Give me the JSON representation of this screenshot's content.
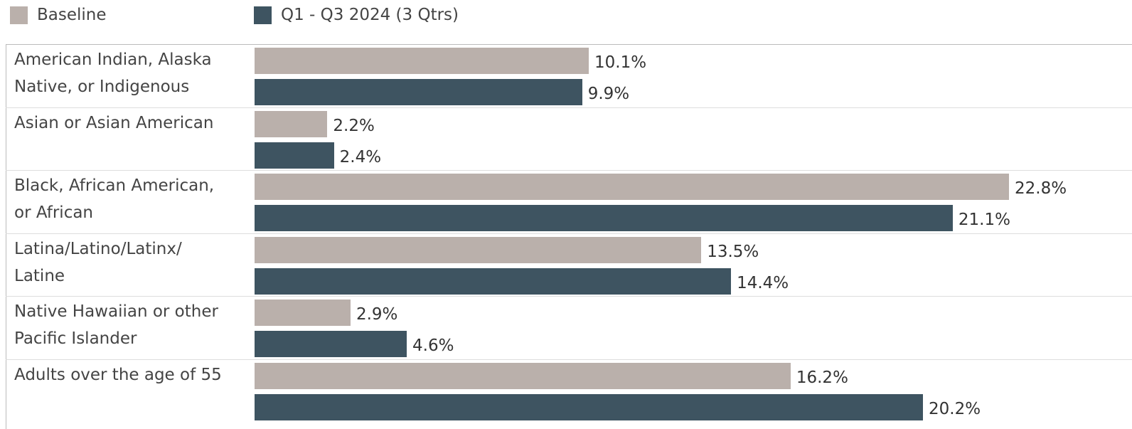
{
  "chart_data": {
    "type": "bar",
    "orientation": "horizontal",
    "categories": [
      "American Indian, Alaska\nNative, or Indigenous",
      "Asian or Asian American",
      "Black, African American,\nor African",
      "Latina/Latino/Latinx/\nLatine",
      "Native Hawaiian or other\nPacific Islander",
      "Adults over the age of 55"
    ],
    "series": [
      {
        "name": "Baseline",
        "color": "#bab0ab",
        "values": [
          10.1,
          2.2,
          22.8,
          13.5,
          2.9,
          16.2
        ],
        "value_labels": [
          "10.1%",
          "2.2%",
          "22.8%",
          "13.5%",
          "2.9%",
          "16.2%"
        ]
      },
      {
        "name": "Q1 - Q3 2024 (3 Qtrs)",
        "color": "#3e5461",
        "values": [
          9.9,
          2.4,
          21.1,
          14.4,
          4.6,
          20.2
        ],
        "value_labels": [
          "9.9%",
          "2.4%",
          "21.1%",
          "14.4%",
          "4.6%",
          "20.2%"
        ]
      }
    ]
  }
}
